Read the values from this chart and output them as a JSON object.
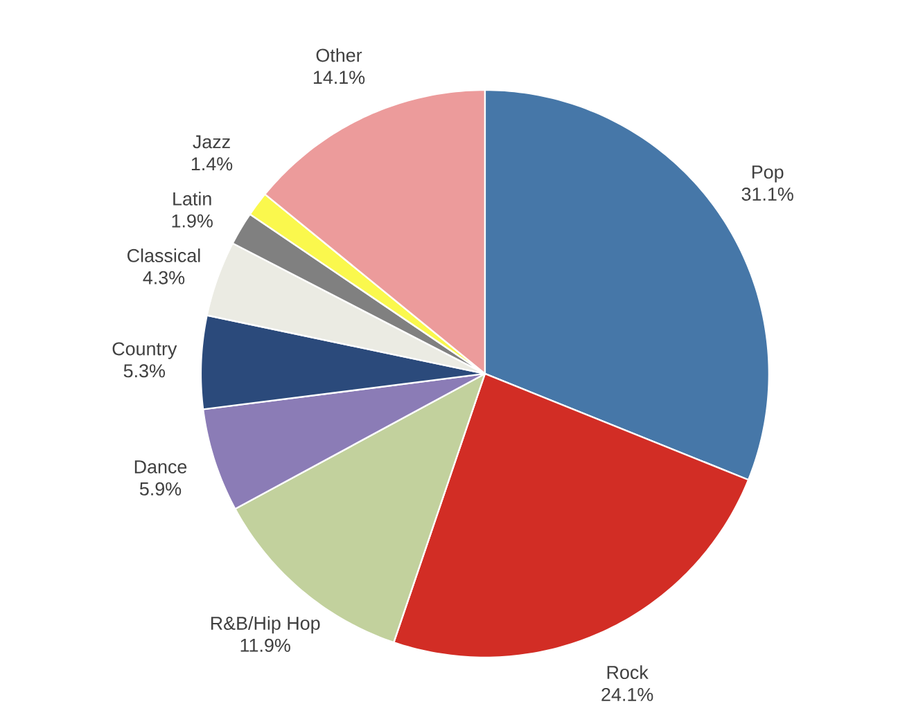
{
  "chart_data": {
    "type": "pie",
    "categories": [
      "Pop",
      "Rock",
      "R&B/Hip Hop",
      "Dance",
      "Country",
      "Classical",
      "Latin",
      "Jazz",
      "Other"
    ],
    "values": [
      31.1,
      24.1,
      11.9,
      5.9,
      5.3,
      4.3,
      1.9,
      1.4,
      14.1
    ],
    "value_labels": [
      "31.1%",
      "24.1%",
      "11.9%",
      "5.9%",
      "5.3%",
      "4.3%",
      "1.9%",
      "1.4%",
      "14.1%"
    ],
    "colors": [
      "#4677a8",
      "#d22d25",
      "#c2d19d",
      "#8b7cb6",
      "#2b4a7b",
      "#ebebe3",
      "#808080",
      "#faf84d",
      "#ec9b9b"
    ]
  }
}
